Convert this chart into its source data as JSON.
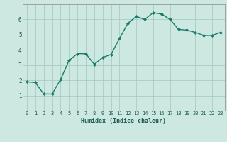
{
  "x": [
    0,
    1,
    2,
    3,
    4,
    5,
    6,
    7,
    8,
    9,
    10,
    11,
    12,
    13,
    14,
    15,
    16,
    17,
    18,
    19,
    20,
    21,
    22,
    23
  ],
  "y": [
    1.9,
    1.85,
    1.1,
    1.1,
    2.05,
    3.3,
    3.75,
    3.75,
    3.05,
    3.5,
    3.7,
    4.75,
    5.75,
    6.2,
    6.0,
    6.45,
    6.35,
    6.0,
    5.35,
    5.3,
    5.15,
    4.95,
    4.95,
    5.15
  ],
  "xlabel": "Humidex (Indice chaleur)",
  "xlim": [
    -0.5,
    23.5
  ],
  "ylim": [
    0,
    7
  ],
  "yticks": [
    1,
    2,
    3,
    4,
    5,
    6
  ],
  "xticks": [
    0,
    1,
    2,
    3,
    4,
    5,
    6,
    7,
    8,
    9,
    10,
    11,
    12,
    13,
    14,
    15,
    16,
    17,
    18,
    19,
    20,
    21,
    22,
    23
  ],
  "line_color": "#1a7a6a",
  "marker": "D",
  "marker_size": 2.0,
  "background_color": "#cce8e0",
  "grid_color": "#a0c8bf",
  "line_width": 1.0,
  "tick_fontsize": 5.0,
  "xlabel_fontsize": 6.0
}
